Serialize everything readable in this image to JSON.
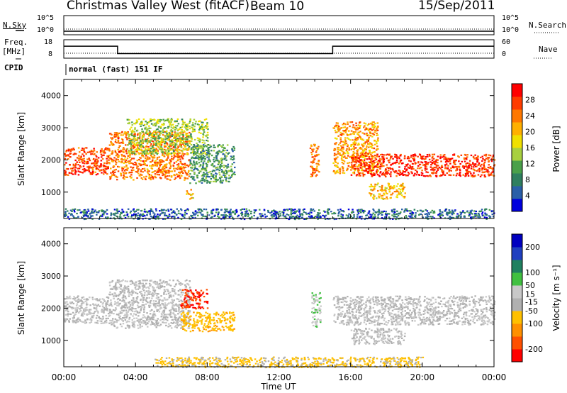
{
  "header": {
    "station": "Christmas Valley West (fitACF)",
    "beam": "Beam 10",
    "date": "15/Sep/2011"
  },
  "nsky": {
    "label": "N.Sky",
    "tick_top": "10^5",
    "tick_bottom": "10^0",
    "right_label": "N.Search",
    "right_tick_top": "10^5",
    "right_tick_bottom": "10^0"
  },
  "freq": {
    "label_line1": "Freq.",
    "label_line2": "[MHz]",
    "tick_top": "18",
    "tick_bottom": "8",
    "right_label": "Nave",
    "right_tick_top": "60",
    "right_tick_bottom": "0",
    "hours": [
      0,
      3,
      3,
      15,
      15,
      24
    ],
    "values": [
      14.5,
      14.5,
      10.5,
      10.5,
      14.5,
      14.5
    ]
  },
  "cpid": {
    "label": "CPID",
    "text": "normal (fast) 151 IF"
  },
  "colors": {
    "power_scale": [
      "#0000dd",
      "#2a5fa8",
      "#2f7f5f",
      "#4aa04a",
      "#a8d040",
      "#f0e000",
      "#ffb000",
      "#ff7800",
      "#ff3c00",
      "#ff0000"
    ],
    "velocity_scale": [
      "#ff0000",
      "#ff5000",
      "#ff9000",
      "#ffc000",
      "#b0b0b0",
      "#c8c8c8",
      "#40c040",
      "#208060",
      "#2040c0",
      "#0000c0"
    ],
    "ground_scatter": "#b4b4b4"
  },
  "chart_data": [
    {
      "type": "heatmap",
      "name": "power",
      "xlabel": "Time UT",
      "ylabel": "Slant Range [km]",
      "xlim": [
        0,
        24
      ],
      "ylim": [
        180,
        4500
      ],
      "yticks": [
        "1000",
        "2000",
        "3000",
        "4000"
      ],
      "colorbar": {
        "label": "Power [dB]",
        "ticks": [
          "4",
          "8",
          "12",
          "16",
          "20",
          "24",
          "28"
        ],
        "range": [
          0,
          32
        ]
      },
      "regions": [
        {
          "x": [
            0.0,
            2.5
          ],
          "y": [
            1550,
            2400
          ],
          "value": 27
        },
        {
          "x": [
            2.5,
            7.0
          ],
          "y": [
            1400,
            2900
          ],
          "value": 24
        },
        {
          "x": [
            3.5,
            8.0
          ],
          "y": [
            2200,
            3300
          ],
          "value": 14
        },
        {
          "x": [
            7.0,
            9.5
          ],
          "y": [
            1300,
            2500
          ],
          "value": 10
        },
        {
          "x": [
            6.8,
            7.2
          ],
          "y": [
            800,
            1100
          ],
          "value": 20
        },
        {
          "x": [
            13.7,
            14.2
          ],
          "y": [
            1500,
            2500
          ],
          "value": 24
        },
        {
          "x": [
            15.0,
            17.5
          ],
          "y": [
            1600,
            3200
          ],
          "value": 22
        },
        {
          "x": [
            16.0,
            24.0
          ],
          "y": [
            1500,
            2200
          ],
          "value": 28
        },
        {
          "x": [
            17.0,
            19.0
          ],
          "y": [
            800,
            1300
          ],
          "value": 20
        },
        {
          "x": [
            0.0,
            24.0
          ],
          "y": [
            180,
            500
          ],
          "value": 6
        }
      ]
    },
    {
      "type": "heatmap",
      "name": "velocity",
      "xlabel": "Time UT",
      "ylabel": "Slant Range [km]",
      "xlim": [
        0,
        24
      ],
      "ylim": [
        180,
        4500
      ],
      "xticks": [
        "00:00",
        "04:00",
        "08:00",
        "12:00",
        "16:00",
        "20:00",
        "00:00"
      ],
      "yticks": [
        "1000",
        "2000",
        "3000",
        "4000"
      ],
      "colorbar": {
        "label": "Velocity [m s⁻¹]",
        "ticks": [
          "-200",
          "-100",
          "-50",
          "-15",
          "15",
          "50",
          "100",
          "200"
        ],
        "range": [
          -250,
          250
        ]
      },
      "regions": [
        {
          "x": [
            0.0,
            2.5
          ],
          "y": [
            1550,
            2400
          ],
          "value": 0
        },
        {
          "x": [
            2.5,
            7.0
          ],
          "y": [
            1400,
            2900
          ],
          "value": 0
        },
        {
          "x": [
            6.5,
            8.0
          ],
          "y": [
            2000,
            2600
          ],
          "value": -200
        },
        {
          "x": [
            6.5,
            9.5
          ],
          "y": [
            1300,
            1900
          ],
          "value": -80
        },
        {
          "x": [
            13.8,
            14.3
          ],
          "y": [
            1400,
            2500
          ],
          "value": 40
        },
        {
          "x": [
            15.0,
            24.0
          ],
          "y": [
            1500,
            2400
          ],
          "value": 0
        },
        {
          "x": [
            16.0,
            19.0
          ],
          "y": [
            900,
            1400
          ],
          "value": 0
        },
        {
          "x": [
            5.0,
            20.0
          ],
          "y": [
            180,
            500
          ],
          "value": -60
        }
      ]
    }
  ]
}
